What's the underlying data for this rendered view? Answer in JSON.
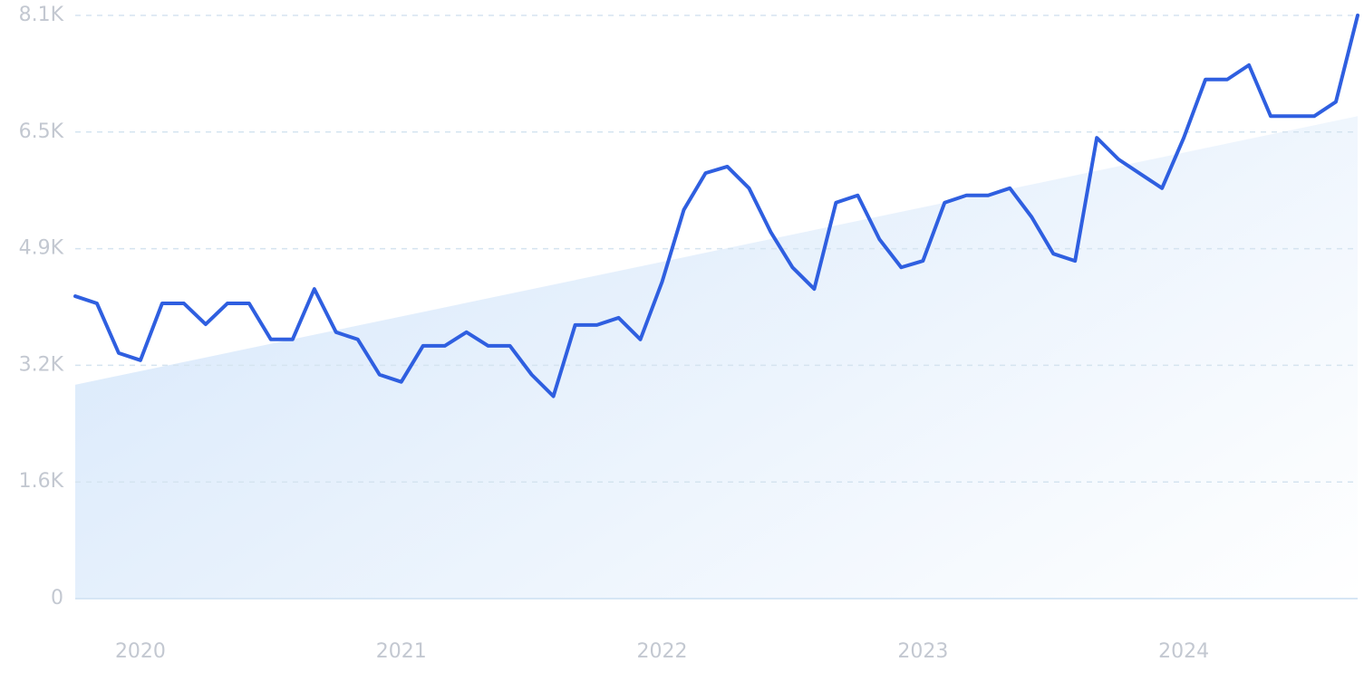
{
  "chart_data": {
    "type": "line",
    "x": [
      2019.75,
      2019.8333,
      2019.9167,
      2020,
      2020.0833,
      2020.1667,
      2020.25,
      2020.3333,
      2020.4167,
      2020.5,
      2020.5833,
      2020.6667,
      2020.75,
      2020.8333,
      2020.9167,
      2021,
      2021.0833,
      2021.1667,
      2021.25,
      2021.3333,
      2021.4167,
      2021.5,
      2021.5833,
      2021.6667,
      2021.75,
      2021.8333,
      2021.9167,
      2022,
      2022.0833,
      2022.1667,
      2022.25,
      2022.3333,
      2022.4167,
      2022.5,
      2022.5833,
      2022.6667,
      2022.75,
      2022.8333,
      2022.9167,
      2023,
      2023.0833,
      2023.1667,
      2023.25,
      2023.3333,
      2023.4167,
      2023.5,
      2023.5833,
      2023.6667,
      2023.75,
      2023.8333,
      2023.9167,
      2024,
      2024.0833,
      2024.1667,
      2024.25,
      2024.3333,
      2024.4167,
      2024.5,
      2024.5833,
      2024.6667
    ],
    "series": [
      {
        "color": "#2f5fe0",
        "values": [
          4200,
          4100,
          3410,
          3310,
          4100,
          4100,
          3810,
          4100,
          4100,
          3600,
          3600,
          4300,
          3700,
          3600,
          3110,
          3010,
          3510,
          3510,
          3700,
          3510,
          3510,
          3110,
          2810,
          3800,
          3800,
          3900,
          3600,
          4400,
          5400,
          5910,
          6000,
          5700,
          5090,
          4600,
          4300,
          5500,
          5600,
          4990,
          4600,
          4690,
          5500,
          5600,
          5600,
          5700,
          5300,
          4790,
          4690,
          6400,
          6100,
          5900,
          5700,
          6400,
          7210,
          7210,
          7410,
          6700,
          6700,
          6700,
          6900,
          8100
        ]
      }
    ],
    "trend": {
      "x": [
        2019.75,
        2024.6667
      ],
      "values": [
        2970,
        6700
      ],
      "color": "#dbeafb"
    },
    "xlim": [
      2019.75,
      2024.6667
    ],
    "xticks": [
      2020,
      2021,
      2022,
      2023,
      2024
    ],
    "ylim": [
      0,
      8100
    ],
    "yticks": [
      0,
      {
        "value": 1620,
        "label": "1.6K"
      },
      {
        "value": 3240,
        "label": "3.2K"
      },
      {
        "value": 4860,
        "label": "4.9K"
      },
      {
        "value": 6480,
        "label": "6.5K"
      },
      {
        "value": 8100,
        "label": "8.1K"
      }
    ],
    "grid": true
  }
}
